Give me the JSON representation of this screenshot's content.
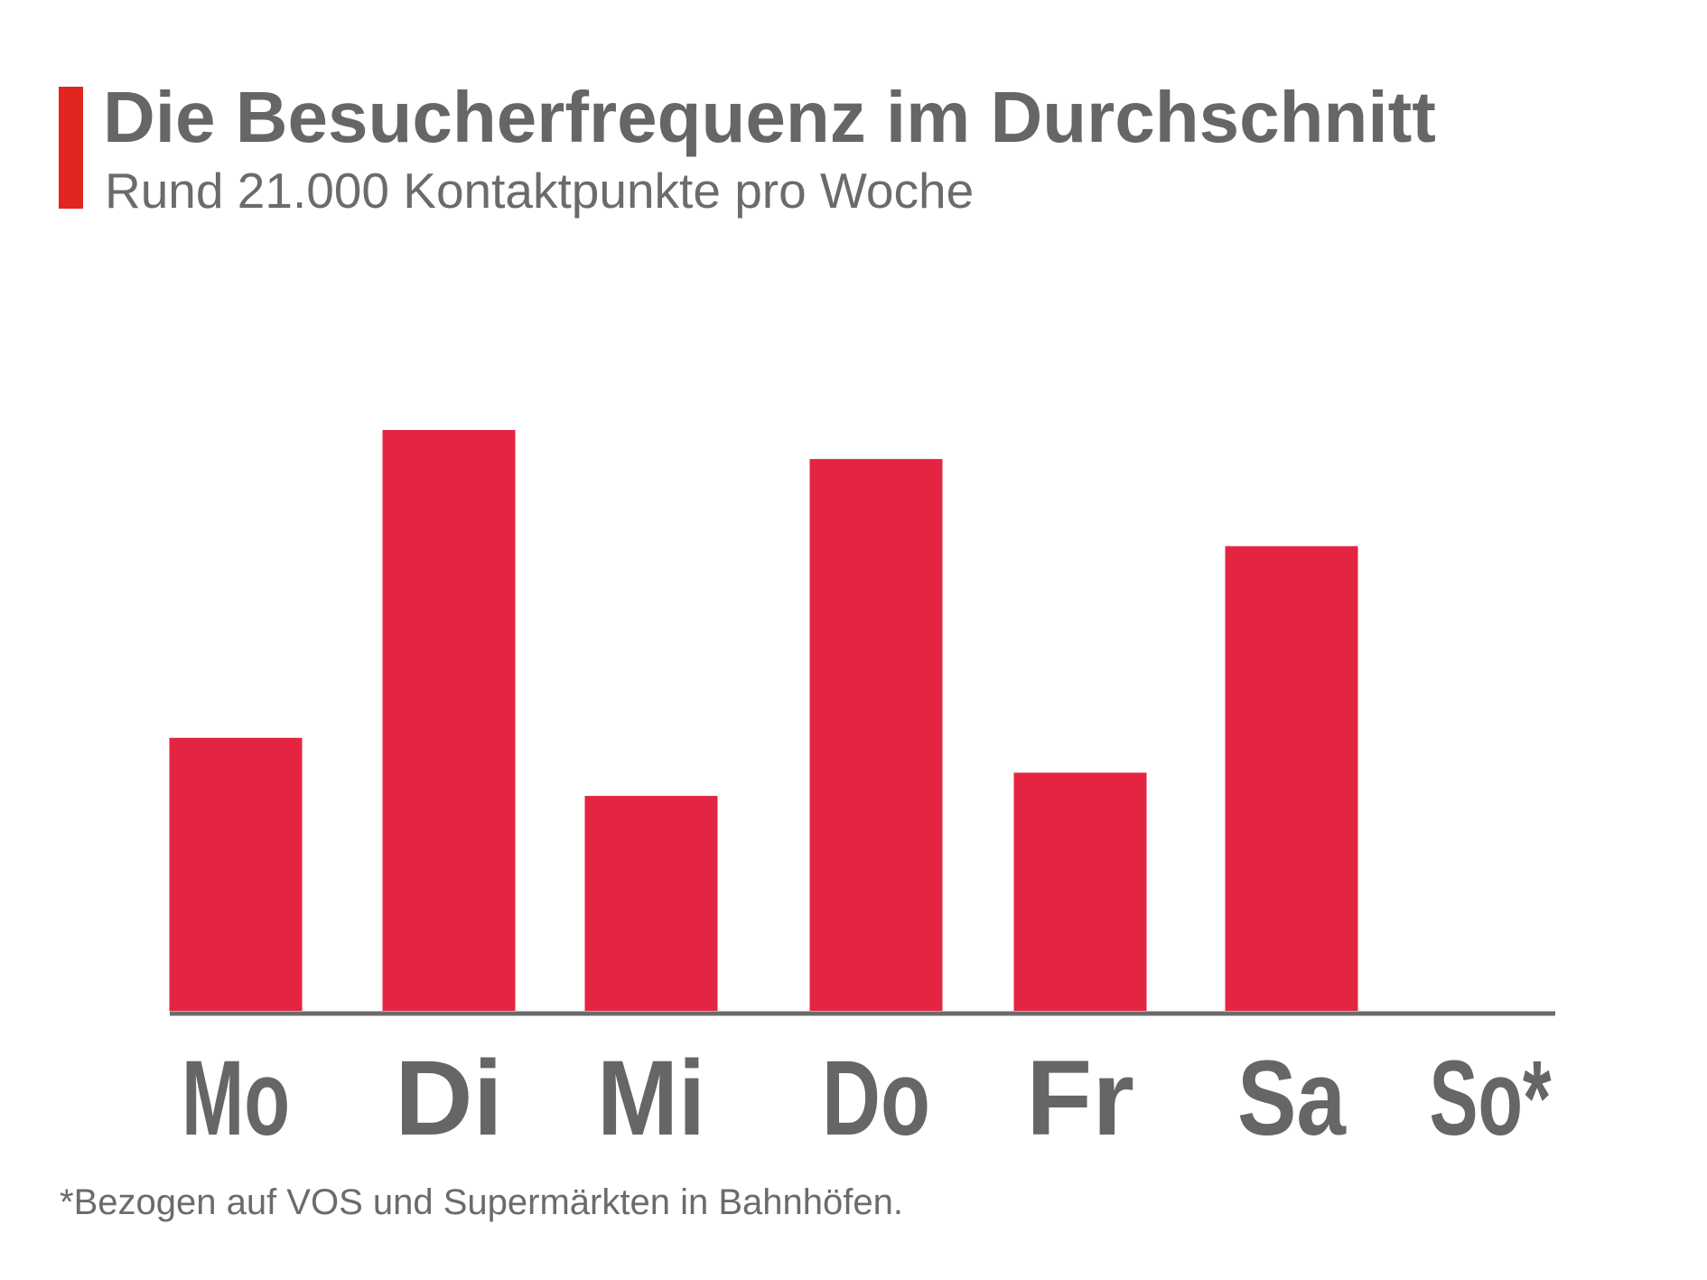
{
  "header": {
    "title": "Die Besucherfrequenz im Durchschnitt",
    "subtitle": "Rund 21.000 Kontaktpunkte pro Woche"
  },
  "footnote": "*Bezogen auf VOS und Supermärkten in Bahnhöfen.",
  "colors": {
    "accent": "#e0261f",
    "bar": "#e42541",
    "text": "#666666",
    "axis": "#6b6b6b"
  },
  "chart_data": {
    "type": "bar",
    "title": "Die Besucherfrequenz im Durchschnitt",
    "subtitle": "Rund 21.000 Kontaktpunkte pro Woche",
    "categories": [
      "Mo",
      "Di",
      "Mi",
      "Do",
      "Fr",
      "Sa",
      "So*"
    ],
    "values": [
      47,
      100,
      37,
      95,
      41,
      80,
      0
    ],
    "ylim": [
      0,
      100
    ],
    "y_axis_visible": false,
    "grid": false,
    "legend": "none",
    "annotations": [
      "*Bezogen auf VOS und Supermärkten in Bahnhöfen."
    ]
  }
}
